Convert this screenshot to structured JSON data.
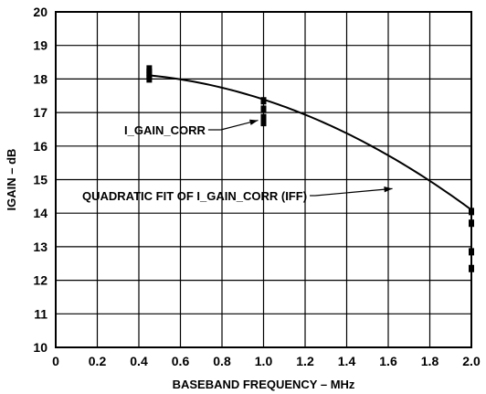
{
  "chart_data": {
    "type": "scatter",
    "title": "",
    "xlabel": "BASEBAND FREQUENCY – MHz",
    "ylabel": "IGAIN – dB",
    "xlim": [
      0,
      2.0
    ],
    "ylim": [
      10,
      20
    ],
    "x_ticks": [
      0,
      0.2,
      0.4,
      0.6,
      0.8,
      1.0,
      1.2,
      1.4,
      1.6,
      1.8,
      2.0
    ],
    "x_tick_labels": [
      "0",
      "0.2",
      "0.4",
      "0.6",
      "0.8",
      "1.0",
      "1.2",
      "1.4",
      "1.6",
      "1.8",
      "2.0"
    ],
    "y_ticks": [
      10,
      11,
      12,
      13,
      14,
      15,
      16,
      17,
      18,
      19,
      20
    ],
    "y_tick_labels": [
      "10",
      "11",
      "12",
      "13",
      "14",
      "15",
      "16",
      "17",
      "18",
      "19",
      "20"
    ],
    "grid": true,
    "series": [
      {
        "name": "I_GAIN_CORR",
        "kind": "points",
        "points": [
          {
            "x": 0.45,
            "y": 18.3
          },
          {
            "x": 0.45,
            "y": 18.2
          },
          {
            "x": 0.45,
            "y": 18.1
          },
          {
            "x": 0.45,
            "y": 18.0
          },
          {
            "x": 1.0,
            "y": 17.35
          },
          {
            "x": 1.0,
            "y": 17.1
          },
          {
            "x": 1.0,
            "y": 16.85
          },
          {
            "x": 1.0,
            "y": 16.7
          },
          {
            "x": 2.0,
            "y": 14.05
          },
          {
            "x": 2.0,
            "y": 13.7
          },
          {
            "x": 2.0,
            "y": 12.85
          },
          {
            "x": 2.0,
            "y": 12.35
          }
        ]
      },
      {
        "name": "QUADRATIC FIT OF I_GAIN_CORR (IFF)",
        "kind": "quadratic_fit",
        "coefficients": {
          "a": -1.28,
          "b": 0.55,
          "c": 18.12
        },
        "x_range": [
          0.45,
          2.0
        ]
      }
    ],
    "annotations": [
      {
        "text": "I_GAIN_CORR",
        "series": 0,
        "point_x": 1.0,
        "point_y": 16.85
      },
      {
        "text": "QUADRATIC FIT OF I_GAIN_CORR (IFF)",
        "series": 1,
        "point_x": 1.62,
        "point_y": 14.73
      }
    ]
  }
}
